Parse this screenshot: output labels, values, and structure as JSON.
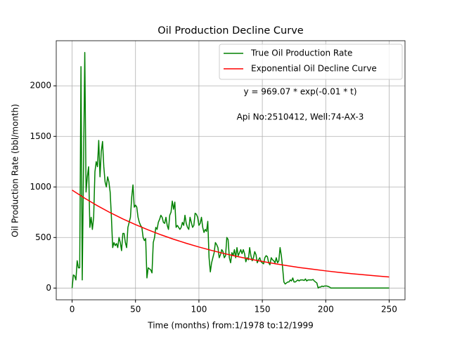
{
  "chart_data": {
    "type": "line",
    "title": "Oil Production Decline Curve",
    "xlabel": "Time (months) from:1/1978 to:12/1999",
    "ylabel": "Oil Production Rate (bbl/month)",
    "annotations": [
      "y = 969.07 * exp(-0.01 * t)",
      "Api No:2510412, Well:74-AX-3"
    ],
    "xlim": [
      -12.5,
      262.5
    ],
    "xticks": [
      0,
      50,
      100,
      150,
      200,
      250
    ],
    "ylim": [
      -116,
      2446
    ],
    "yticks": [
      0,
      500,
      1000,
      1500,
      2000
    ],
    "grid": true,
    "legend": "upper right",
    "series": [
      {
        "name": "True Oil Production Rate",
        "color": "#008000",
        "x": [
          0,
          1,
          2,
          3,
          4,
          5,
          6,
          7,
          8,
          9,
          10,
          11,
          12,
          13,
          14,
          15,
          16,
          17,
          18,
          19,
          20,
          21,
          22,
          23,
          24,
          25,
          26,
          27,
          28,
          29,
          30,
          31,
          32,
          33,
          34,
          35,
          36,
          37,
          38,
          39,
          40,
          41,
          42,
          43,
          44,
          45,
          46,
          47,
          48,
          49,
          50,
          51,
          52,
          53,
          54,
          55,
          56,
          57,
          58,
          59,
          60,
          61,
          62,
          63,
          64,
          65,
          66,
          67,
          68,
          69,
          70,
          71,
          72,
          73,
          74,
          75,
          76,
          77,
          78,
          79,
          80,
          81,
          82,
          83,
          84,
          85,
          86,
          87,
          88,
          89,
          90,
          91,
          92,
          93,
          94,
          95,
          96,
          97,
          98,
          99,
          100,
          101,
          102,
          103,
          104,
          105,
          106,
          107,
          108,
          109,
          110,
          111,
          112,
          113,
          114,
          115,
          116,
          117,
          118,
          119,
          120,
          121,
          122,
          123,
          124,
          125,
          126,
          127,
          128,
          129,
          130,
          131,
          132,
          133,
          134,
          135,
          136,
          137,
          138,
          139,
          140,
          141,
          142,
          143,
          144,
          145,
          146,
          147,
          148,
          149,
          150,
          151,
          152,
          153,
          154,
          155,
          156,
          157,
          158,
          159,
          160,
          161,
          162,
          163,
          164,
          165,
          166,
          167,
          168,
          169,
          170,
          171,
          172,
          173,
          174,
          175,
          176,
          177,
          178,
          179,
          180,
          181,
          182,
          183,
          184,
          185,
          186,
          187,
          188,
          189,
          190,
          191,
          192,
          193,
          194,
          195,
          196,
          197,
          198,
          199,
          200,
          201,
          202,
          203,
          204,
          205,
          210,
          250
        ],
        "values": [
          0,
          130,
          120,
          80,
          270,
          200,
          200,
          2190,
          80,
          1200,
          2330,
          950,
          1100,
          1200,
          600,
          700,
          580,
          700,
          1150,
          1250,
          1200,
          1460,
          1100,
          1350,
          1450,
          1200,
          1050,
          1000,
          1100,
          1050,
          950,
          700,
          400,
          450,
          420,
          440,
          400,
          500,
          450,
          370,
          540,
          540,
          450,
          400,
          600,
          650,
          700,
          900,
          1020,
          800,
          820,
          800,
          700,
          650,
          620,
          600,
          500,
          470,
          490,
          100,
          200,
          190,
          180,
          150,
          450,
          500,
          600,
          580,
          650,
          680,
          720,
          700,
          650,
          640,
          700,
          620,
          580,
          720,
          750,
          860,
          780,
          850,
          600,
          620,
          600,
          580,
          600,
          650,
          620,
          720,
          640,
          600,
          580,
          700,
          650,
          600,
          620,
          740,
          730,
          700,
          620,
          640,
          700,
          600,
          550,
          580,
          560,
          660,
          300,
          160,
          250,
          300,
          350,
          450,
          430,
          400,
          300,
          330,
          380,
          360,
          300,
          320,
          500,
          480,
          300,
          250,
          350,
          320,
          380,
          300,
          400,
          320,
          350,
          380,
          340,
          380,
          340,
          260,
          300,
          280,
          400,
          320,
          270,
          300,
          360,
          330,
          250,
          280,
          300,
          260,
          250,
          240,
          300,
          320,
          310,
          250,
          230,
          300,
          280,
          270,
          250,
          300,
          250,
          270,
          400,
          320,
          200,
          60,
          40,
          50,
          60,
          60,
          80,
          70,
          100,
          60,
          60,
          70,
          80,
          70,
          80,
          80,
          80,
          75,
          90,
          70,
          80,
          80,
          80,
          80,
          85,
          70,
          60,
          50,
          0,
          10,
          10,
          20,
          15,
          20,
          20,
          20,
          15,
          10,
          0,
          0,
          0,
          0
        ]
      },
      {
        "name": "Exponential Oil Decline Curve",
        "color": "#ff0000",
        "x": [
          0,
          10,
          20,
          30,
          40,
          50,
          60,
          70,
          80,
          90,
          100,
          110,
          120,
          130,
          140,
          150,
          160,
          170,
          180,
          190,
          200,
          210,
          220,
          230,
          240,
          250
        ],
        "values": [
          969,
          888,
          814,
          746,
          684,
          627,
          575,
          527,
          483,
          443,
          406,
          372,
          341,
          313,
          287,
          263,
          241,
          221,
          202,
          186,
          170,
          156,
          143,
          131,
          120,
          110
        ]
      }
    ]
  }
}
